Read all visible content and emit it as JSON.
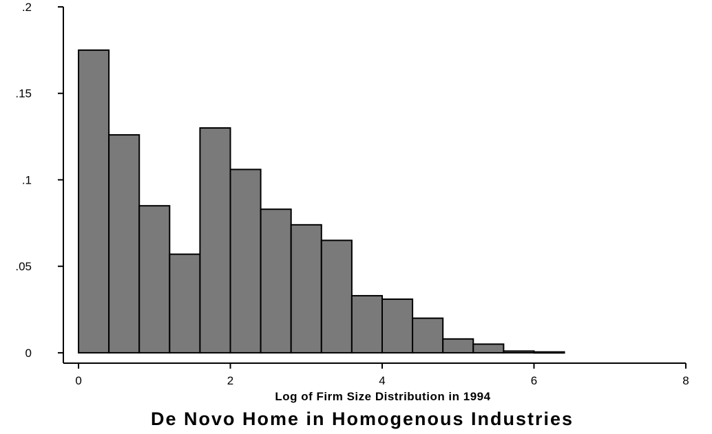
{
  "chart_data": {
    "type": "bar",
    "subtype": "histogram",
    "bin_width": 0.4,
    "bins": [
      {
        "start": 0.0,
        "end": 0.4,
        "density": 0.175
      },
      {
        "start": 0.4,
        "end": 0.8,
        "density": 0.126
      },
      {
        "start": 0.8,
        "end": 1.2,
        "density": 0.085
      },
      {
        "start": 1.2,
        "end": 1.6,
        "density": 0.057
      },
      {
        "start": 1.6,
        "end": 2.0,
        "density": 0.13
      },
      {
        "start": 2.0,
        "end": 2.4,
        "density": 0.106
      },
      {
        "start": 2.4,
        "end": 2.8,
        "density": 0.083
      },
      {
        "start": 2.8,
        "end": 3.2,
        "density": 0.074
      },
      {
        "start": 3.2,
        "end": 3.6,
        "density": 0.065
      },
      {
        "start": 3.6,
        "end": 4.0,
        "density": 0.033
      },
      {
        "start": 4.0,
        "end": 4.4,
        "density": 0.031
      },
      {
        "start": 4.4,
        "end": 4.8,
        "density": 0.02
      },
      {
        "start": 4.8,
        "end": 5.2,
        "density": 0.008
      },
      {
        "start": 5.2,
        "end": 5.6,
        "density": 0.005
      },
      {
        "start": 5.6,
        "end": 6.0,
        "density": 0.001
      },
      {
        "start": 6.0,
        "end": 6.4,
        "density": 0.0005
      }
    ],
    "title": "De Novo Home in Homogenous Industries",
    "xlabel": "Log of Firm Size Distribution in 1994",
    "ylabel": "",
    "xlim": [
      -0.2,
      8.2
    ],
    "ylim": [
      -0.006,
      0.2
    ],
    "x_ticks": [
      0,
      2,
      4,
      6,
      8
    ],
    "x_tick_labels": [
      "0",
      "2",
      "4",
      "6",
      "8"
    ],
    "y_ticks": [
      0,
      0.05,
      0.1,
      0.15,
      0.2
    ],
    "y_tick_labels": [
      "0",
      ".05",
      ".1",
      ".15",
      ".2"
    ],
    "grid": false,
    "legend": "none",
    "colors": {
      "bar_fill": "#7a7a7a",
      "bar_stroke": "#000000",
      "axis": "#000000"
    }
  }
}
